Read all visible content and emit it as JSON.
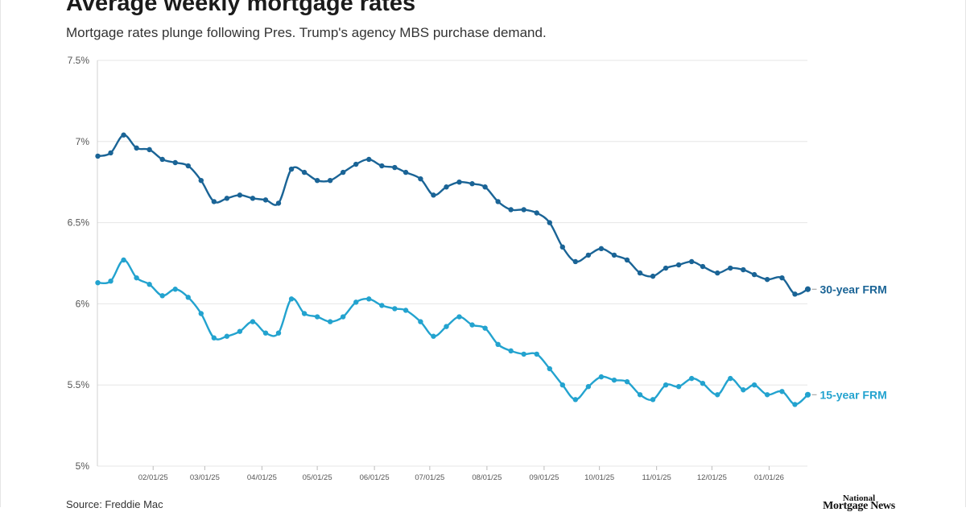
{
  "header": {
    "title": "Average weekly mortgage rates",
    "subtitle": "Mortgage rates plunge following Pres. Trump's agency MBS purchase demand."
  },
  "footer": {
    "source": "Source: Freddie Mac",
    "brand_line1": "National",
    "brand_line2": "Mortgage News"
  },
  "chart_data": {
    "type": "line",
    "title": "Average weekly mortgage rates",
    "subtitle": "Mortgage rates plunge following Pres. Trump's agency MBS purchase demand.",
    "xlabel": "",
    "ylabel": "",
    "ylim": [
      5.0,
      7.5
    ],
    "yticks": [
      5.0,
      5.5,
      6.0,
      6.5,
      7.0,
      7.5
    ],
    "ytick_labels": [
      "5%",
      "5.5%",
      "6%",
      "6.5%",
      "7%",
      "7.5%"
    ],
    "xlim": [
      "2025-01-02",
      "2026-01-22"
    ],
    "xticks": [
      "2025-02-01",
      "2025-03-01",
      "2025-04-01",
      "2025-05-01",
      "2025-06-01",
      "2025-07-01",
      "2025-08-01",
      "2025-09-01",
      "2025-10-01",
      "2025-11-01",
      "2025-12-01",
      "2026-01-01"
    ],
    "xtick_labels": [
      "02/01/25",
      "03/01/25",
      "04/01/25",
      "05/01/25",
      "06/01/25",
      "07/01/25",
      "08/01/25",
      "09/01/25",
      "10/01/25",
      "11/01/25",
      "12/01/25",
      "01/01/26"
    ],
    "grid": true,
    "legend": "direct labels at line ends",
    "x": [
      "2025-01-02",
      "2025-01-09",
      "2025-01-16",
      "2025-01-23",
      "2025-01-30",
      "2025-02-06",
      "2025-02-13",
      "2025-02-20",
      "2025-02-27",
      "2025-03-06",
      "2025-03-13",
      "2025-03-20",
      "2025-03-27",
      "2025-04-03",
      "2025-04-10",
      "2025-04-17",
      "2025-04-24",
      "2025-05-01",
      "2025-05-08",
      "2025-05-15",
      "2025-05-22",
      "2025-05-29",
      "2025-06-05",
      "2025-06-12",
      "2025-06-18",
      "2025-06-26",
      "2025-07-03",
      "2025-07-10",
      "2025-07-17",
      "2025-07-24",
      "2025-07-31",
      "2025-08-07",
      "2025-08-14",
      "2025-08-21",
      "2025-08-28",
      "2025-09-04",
      "2025-09-11",
      "2025-09-18",
      "2025-09-25",
      "2025-10-02",
      "2025-10-09",
      "2025-10-16",
      "2025-10-23",
      "2025-10-30",
      "2025-11-06",
      "2025-11-13",
      "2025-11-20",
      "2025-11-26",
      "2025-12-04",
      "2025-12-11",
      "2025-12-18",
      "2025-12-24",
      "2025-12-31",
      "2026-01-08",
      "2026-01-15",
      "2026-01-22"
    ],
    "series": [
      {
        "name": "30-year FRM",
        "color": "#1a6496",
        "values": [
          6.91,
          6.93,
          7.04,
          6.96,
          6.95,
          6.89,
          6.87,
          6.85,
          6.76,
          6.63,
          6.65,
          6.67,
          6.65,
          6.64,
          6.62,
          6.83,
          6.81,
          6.76,
          6.76,
          6.81,
          6.86,
          6.89,
          6.85,
          6.84,
          6.81,
          6.77,
          6.67,
          6.72,
          6.75,
          6.74,
          6.72,
          6.63,
          6.58,
          6.58,
          6.56,
          6.5,
          6.35,
          6.26,
          6.3,
          6.34,
          6.3,
          6.27,
          6.19,
          6.17,
          6.22,
          6.24,
          6.26,
          6.23,
          6.19,
          6.22,
          6.21,
          6.18,
          6.15,
          6.16,
          6.06,
          6.09
        ]
      },
      {
        "name": "15-year FRM",
        "color": "#23a3cf",
        "values": [
          6.13,
          6.14,
          6.27,
          6.16,
          6.12,
          6.05,
          6.09,
          6.04,
          5.94,
          5.79,
          5.8,
          5.83,
          5.89,
          5.82,
          5.82,
          6.03,
          5.94,
          5.92,
          5.89,
          5.92,
          6.01,
          6.03,
          5.99,
          5.97,
          5.96,
          5.89,
          5.8,
          5.86,
          5.92,
          5.87,
          5.85,
          5.75,
          5.71,
          5.69,
          5.69,
          5.6,
          5.5,
          5.41,
          5.49,
          5.55,
          5.53,
          5.52,
          5.44,
          5.41,
          5.5,
          5.49,
          5.54,
          5.51,
          5.44,
          5.54,
          5.47,
          5.5,
          5.44,
          5.46,
          5.38,
          5.44
        ]
      }
    ]
  }
}
